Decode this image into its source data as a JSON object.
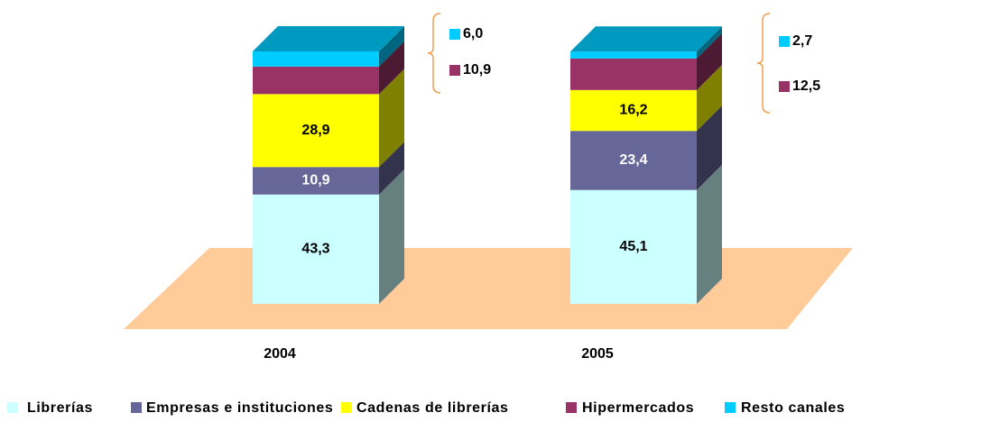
{
  "chart_data": {
    "type": "bar3d_stacked",
    "categories": [
      "2004",
      "2005"
    ],
    "series": [
      {
        "name": "Librerías",
        "color": "#ccffff",
        "values": [
          43.3,
          45.1
        ],
        "value_labels": [
          "43,3",
          "45,1"
        ]
      },
      {
        "name": "Empresas e instituciones",
        "color": "#666699",
        "values": [
          10.9,
          23.4
        ],
        "value_labels": [
          "10,9",
          "23,4"
        ]
      },
      {
        "name": "Cadenas de librerías",
        "color": "#ffff00",
        "values": [
          28.9,
          16.2
        ],
        "value_labels": [
          "28,9",
          "16,2"
        ]
      },
      {
        "name": "Hipermercados",
        "color": "#993366",
        "values": [
          10.9,
          12.5
        ],
        "value_labels": [
          "10,9",
          "12,5"
        ]
      },
      {
        "name": "Resto canales",
        "color": "#00ccff",
        "values": [
          6.0,
          2.7
        ],
        "value_labels": [
          "6,0",
          "2,7"
        ]
      }
    ]
  }
}
